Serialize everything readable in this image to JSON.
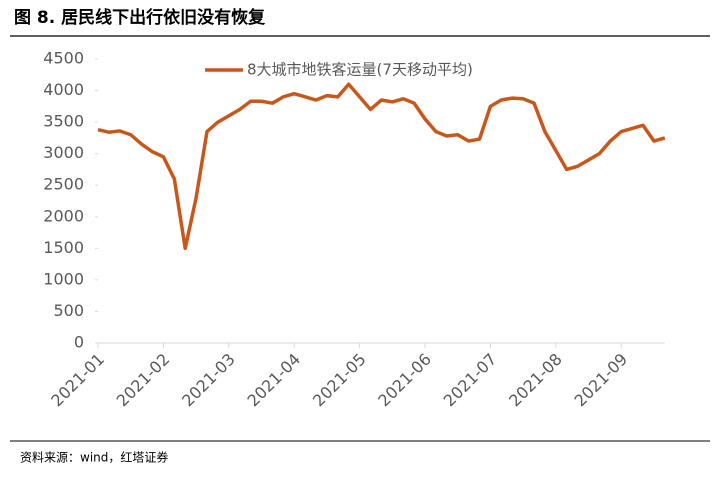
{
  "header": {
    "title": "图 8. 居民线下出行依旧没有恢复"
  },
  "chart_data": {
    "type": "line",
    "categories": [
      "2021-01",
      null,
      null,
      null,
      null,
      null,
      "2021-02",
      null,
      null,
      null,
      null,
      null,
      "2021-03",
      null,
      null,
      null,
      null,
      null,
      "2021-04",
      null,
      null,
      null,
      null,
      null,
      "2021-05",
      null,
      null,
      null,
      null,
      null,
      "2021-06",
      null,
      null,
      null,
      null,
      null,
      "2021-07",
      null,
      null,
      null,
      null,
      null,
      "2021-08",
      null,
      null,
      null,
      null,
      null,
      "2021-09",
      null,
      null,
      null,
      null
    ],
    "series": [
      {
        "name": "8大城市地铁客运量(7天移动平均)",
        "color": "#c8571b",
        "values": [
          3380,
          3340,
          3360,
          3300,
          3150,
          3030,
          2950,
          2600,
          1500,
          2300,
          3350,
          3500,
          3600,
          3700,
          3830,
          3830,
          3800,
          3900,
          3950,
          3900,
          3850,
          3920,
          3900,
          4100,
          3900,
          3700,
          3850,
          3820,
          3870,
          3800,
          3550,
          3350,
          3280,
          3300,
          3200,
          3230,
          3750,
          3850,
          3880,
          3870,
          3800,
          3350,
          3050,
          2750,
          2800,
          2900,
          3000,
          3200,
          3350,
          3400,
          3450,
          3200,
          3250
        ]
      }
    ],
    "ylim": [
      0,
      4500
    ],
    "yticks": [
      0,
      500,
      1000,
      1500,
      2000,
      2500,
      3000,
      3500,
      4000,
      4500
    ],
    "legend": "top"
  },
  "footer": {
    "source": "资料来源：wind，红塔证券"
  }
}
